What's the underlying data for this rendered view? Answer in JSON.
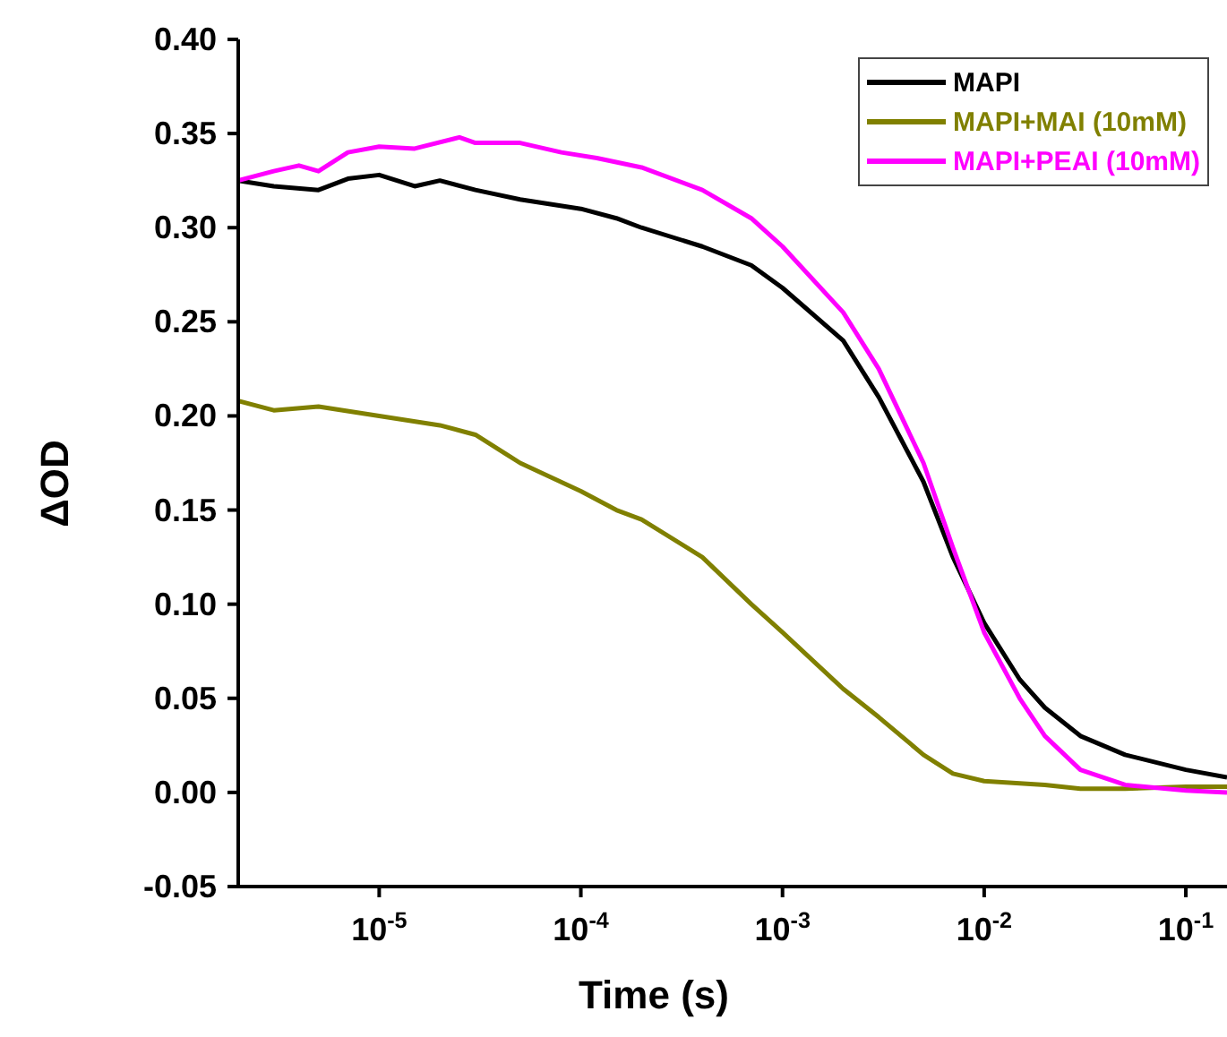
{
  "chart_data": {
    "type": "line",
    "xlabel": "Time (s)",
    "ylabel": "ΔOD",
    "log": "x",
    "xlim": [
      2e-06,
      0.16
    ],
    "xticks": [
      {
        "value": 1e-05,
        "label": "10$^{-5}$"
      },
      {
        "value": 0.0001,
        "label": "10$^{-4}$"
      },
      {
        "value": 0.001,
        "label": "10$^{-3}$"
      },
      {
        "value": 0.01,
        "label": "10$^{-2}$"
      },
      {
        "value": 0.1,
        "label": "10$^{-1}$"
      }
    ],
    "ylim": [
      -0.05,
      0.4
    ],
    "yticks": [
      {
        "value": -0.05,
        "label": "-0.05"
      },
      {
        "value": 0,
        "label": "0.00"
      },
      {
        "value": 0.05,
        "label": "0.05"
      },
      {
        "value": 0.1,
        "label": "0.10"
      },
      {
        "value": 0.15,
        "label": "0.15"
      },
      {
        "value": 0.2,
        "label": "0.20"
      },
      {
        "value": 0.25,
        "label": "0.25"
      },
      {
        "value": 0.3,
        "label": "0.30"
      },
      {
        "value": 0.35,
        "label": "0.35"
      },
      {
        "value": 0.4,
        "label": "0.40"
      }
    ],
    "grid": false,
    "legend": "top right",
    "marker": "none",
    "line_style": "solid",
    "series": [
      {
        "name": "MAPI",
        "color": "#000000",
        "x": [
          2e-06,
          3e-06,
          5e-06,
          7e-06,
          1e-05,
          1.5e-05,
          2e-05,
          3e-05,
          5e-05,
          0.0001,
          0.00015,
          0.0002,
          0.0004,
          0.0007,
          0.001,
          0.002,
          0.003,
          0.005,
          0.007,
          0.01,
          0.015,
          0.02,
          0.03,
          0.05,
          0.1,
          0.16
        ],
        "values": [
          0.325,
          0.322,
          0.32,
          0.326,
          0.328,
          0.322,
          0.325,
          0.32,
          0.315,
          0.31,
          0.305,
          0.3,
          0.29,
          0.28,
          0.268,
          0.24,
          0.21,
          0.165,
          0.125,
          0.09,
          0.06,
          0.045,
          0.03,
          0.02,
          0.012,
          0.008
        ]
      },
      {
        "name": "MAPI+MAI (10mM)",
        "color": "#808000",
        "x": [
          2e-06,
          3e-06,
          5e-06,
          1e-05,
          2e-05,
          3e-05,
          5e-05,
          0.0001,
          0.00015,
          0.0002,
          0.0004,
          0.0007,
          0.001,
          0.002,
          0.003,
          0.005,
          0.007,
          0.01,
          0.02,
          0.03,
          0.05,
          0.1,
          0.16
        ],
        "values": [
          0.208,
          0.203,
          0.205,
          0.2,
          0.195,
          0.19,
          0.175,
          0.16,
          0.15,
          0.145,
          0.125,
          0.1,
          0.085,
          0.055,
          0.04,
          0.02,
          0.01,
          0.006,
          0.004,
          0.002,
          0.002,
          0.003,
          0.003
        ]
      },
      {
        "name": "MAPI+PEAI (10mM)",
        "color": "#ff00ff",
        "x": [
          2e-06,
          3e-06,
          4e-06,
          5e-06,
          7e-06,
          1e-05,
          1.5e-05,
          2.5e-05,
          3e-05,
          5e-05,
          8e-05,
          0.00012,
          0.0002,
          0.0004,
          0.0007,
          0.001,
          0.002,
          0.003,
          0.005,
          0.007,
          0.01,
          0.015,
          0.02,
          0.03,
          0.05,
          0.1,
          0.16
        ],
        "values": [
          0.325,
          0.33,
          0.333,
          0.33,
          0.34,
          0.343,
          0.342,
          0.348,
          0.345,
          0.345,
          0.34,
          0.337,
          0.332,
          0.32,
          0.305,
          0.29,
          0.255,
          0.225,
          0.175,
          0.13,
          0.085,
          0.05,
          0.03,
          0.012,
          0.004,
          0.001,
          0
        ]
      }
    ]
  }
}
